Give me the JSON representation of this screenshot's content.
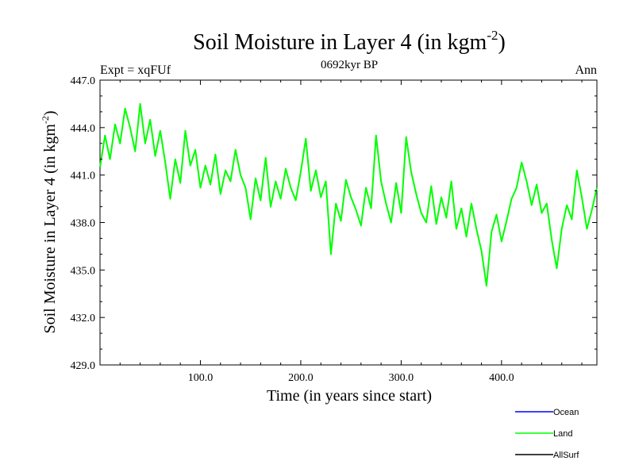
{
  "chart_data": {
    "type": "line",
    "title_main": "Soil Moisture in Layer 4 (in kgm",
    "title_sup": "-2",
    "title_close": ")",
    "subtitle_left": "Expt = xqFUf",
    "subtitle_center": "0692kyr BP",
    "subtitle_right": "Ann",
    "ylabel_main": "Soil Moisture in Layer 4 (in kgm",
    "ylabel_sup": "-2",
    "ylabel_close": ")",
    "xlabel": "Time (in years since start)",
    "xlim": [
      0,
      495
    ],
    "ylim": [
      429,
      447
    ],
    "xticks": [
      100,
      200,
      300,
      400
    ],
    "xtick_labels": [
      "100.0",
      "200.0",
      "300.0",
      "400.0"
    ],
    "yticks": [
      429,
      432,
      435,
      438,
      441,
      444,
      447
    ],
    "ytick_labels": [
      "429.0",
      "432.0",
      "435.0",
      "438.0",
      "441.0",
      "444.0",
      "447.0"
    ],
    "legend": [
      {
        "name": "Ocean",
        "color": "#0000ff"
      },
      {
        "name": "Land",
        "color": "#00ff00"
      },
      {
        "name": "AllSurf",
        "color": "#000000"
      }
    ],
    "series": [
      {
        "name": "Land",
        "color": "#00ff00",
        "x": [
          0,
          5,
          10,
          15,
          20,
          25,
          30,
          35,
          40,
          45,
          50,
          55,
          60,
          65,
          70,
          75,
          80,
          85,
          90,
          95,
          100,
          105,
          110,
          115,
          120,
          125,
          130,
          135,
          140,
          145,
          150,
          155,
          160,
          165,
          170,
          175,
          180,
          185,
          190,
          195,
          200,
          205,
          210,
          215,
          220,
          225,
          230,
          235,
          240,
          245,
          250,
          255,
          260,
          265,
          270,
          275,
          280,
          285,
          290,
          295,
          300,
          305,
          310,
          315,
          320,
          325,
          330,
          335,
          340,
          345,
          350,
          355,
          360,
          365,
          370,
          375,
          380,
          385,
          390,
          395,
          400,
          405,
          410,
          415,
          420,
          425,
          430,
          435,
          440,
          445,
          450,
          455,
          460,
          465,
          470,
          475,
          480,
          485,
          490,
          495
        ],
        "values": [
          441.5,
          443.5,
          442.0,
          444.2,
          443.0,
          445.2,
          444.0,
          442.5,
          445.5,
          443.0,
          444.5,
          442.2,
          443.8,
          441.8,
          439.5,
          442.0,
          440.5,
          443.8,
          441.6,
          442.6,
          440.2,
          441.6,
          440.4,
          442.3,
          439.8,
          441.3,
          440.6,
          442.6,
          441.0,
          440.2,
          438.2,
          440.8,
          439.4,
          442.1,
          439.0,
          440.6,
          439.5,
          441.4,
          440.2,
          439.4,
          441.2,
          443.3,
          440.0,
          441.3,
          439.6,
          440.6,
          436.0,
          439.2,
          438.1,
          440.7,
          439.6,
          438.8,
          437.8,
          440.2,
          438.9,
          443.5,
          440.6,
          439.2,
          438.0,
          440.5,
          438.6,
          443.4,
          441.2,
          439.8,
          438.6,
          438.0,
          440.3,
          437.9,
          439.6,
          438.3,
          440.6,
          437.6,
          438.9,
          437.1,
          439.2,
          437.6,
          436.2,
          434.0,
          437.4,
          438.5,
          436.8,
          438.1,
          439.5,
          440.2,
          441.8,
          440.6,
          439.1,
          440.4,
          438.6,
          439.2,
          436.9,
          435.1,
          437.6,
          439.1,
          438.2,
          441.3,
          439.6,
          437.6,
          438.8,
          440.2
        ]
      }
    ]
  }
}
